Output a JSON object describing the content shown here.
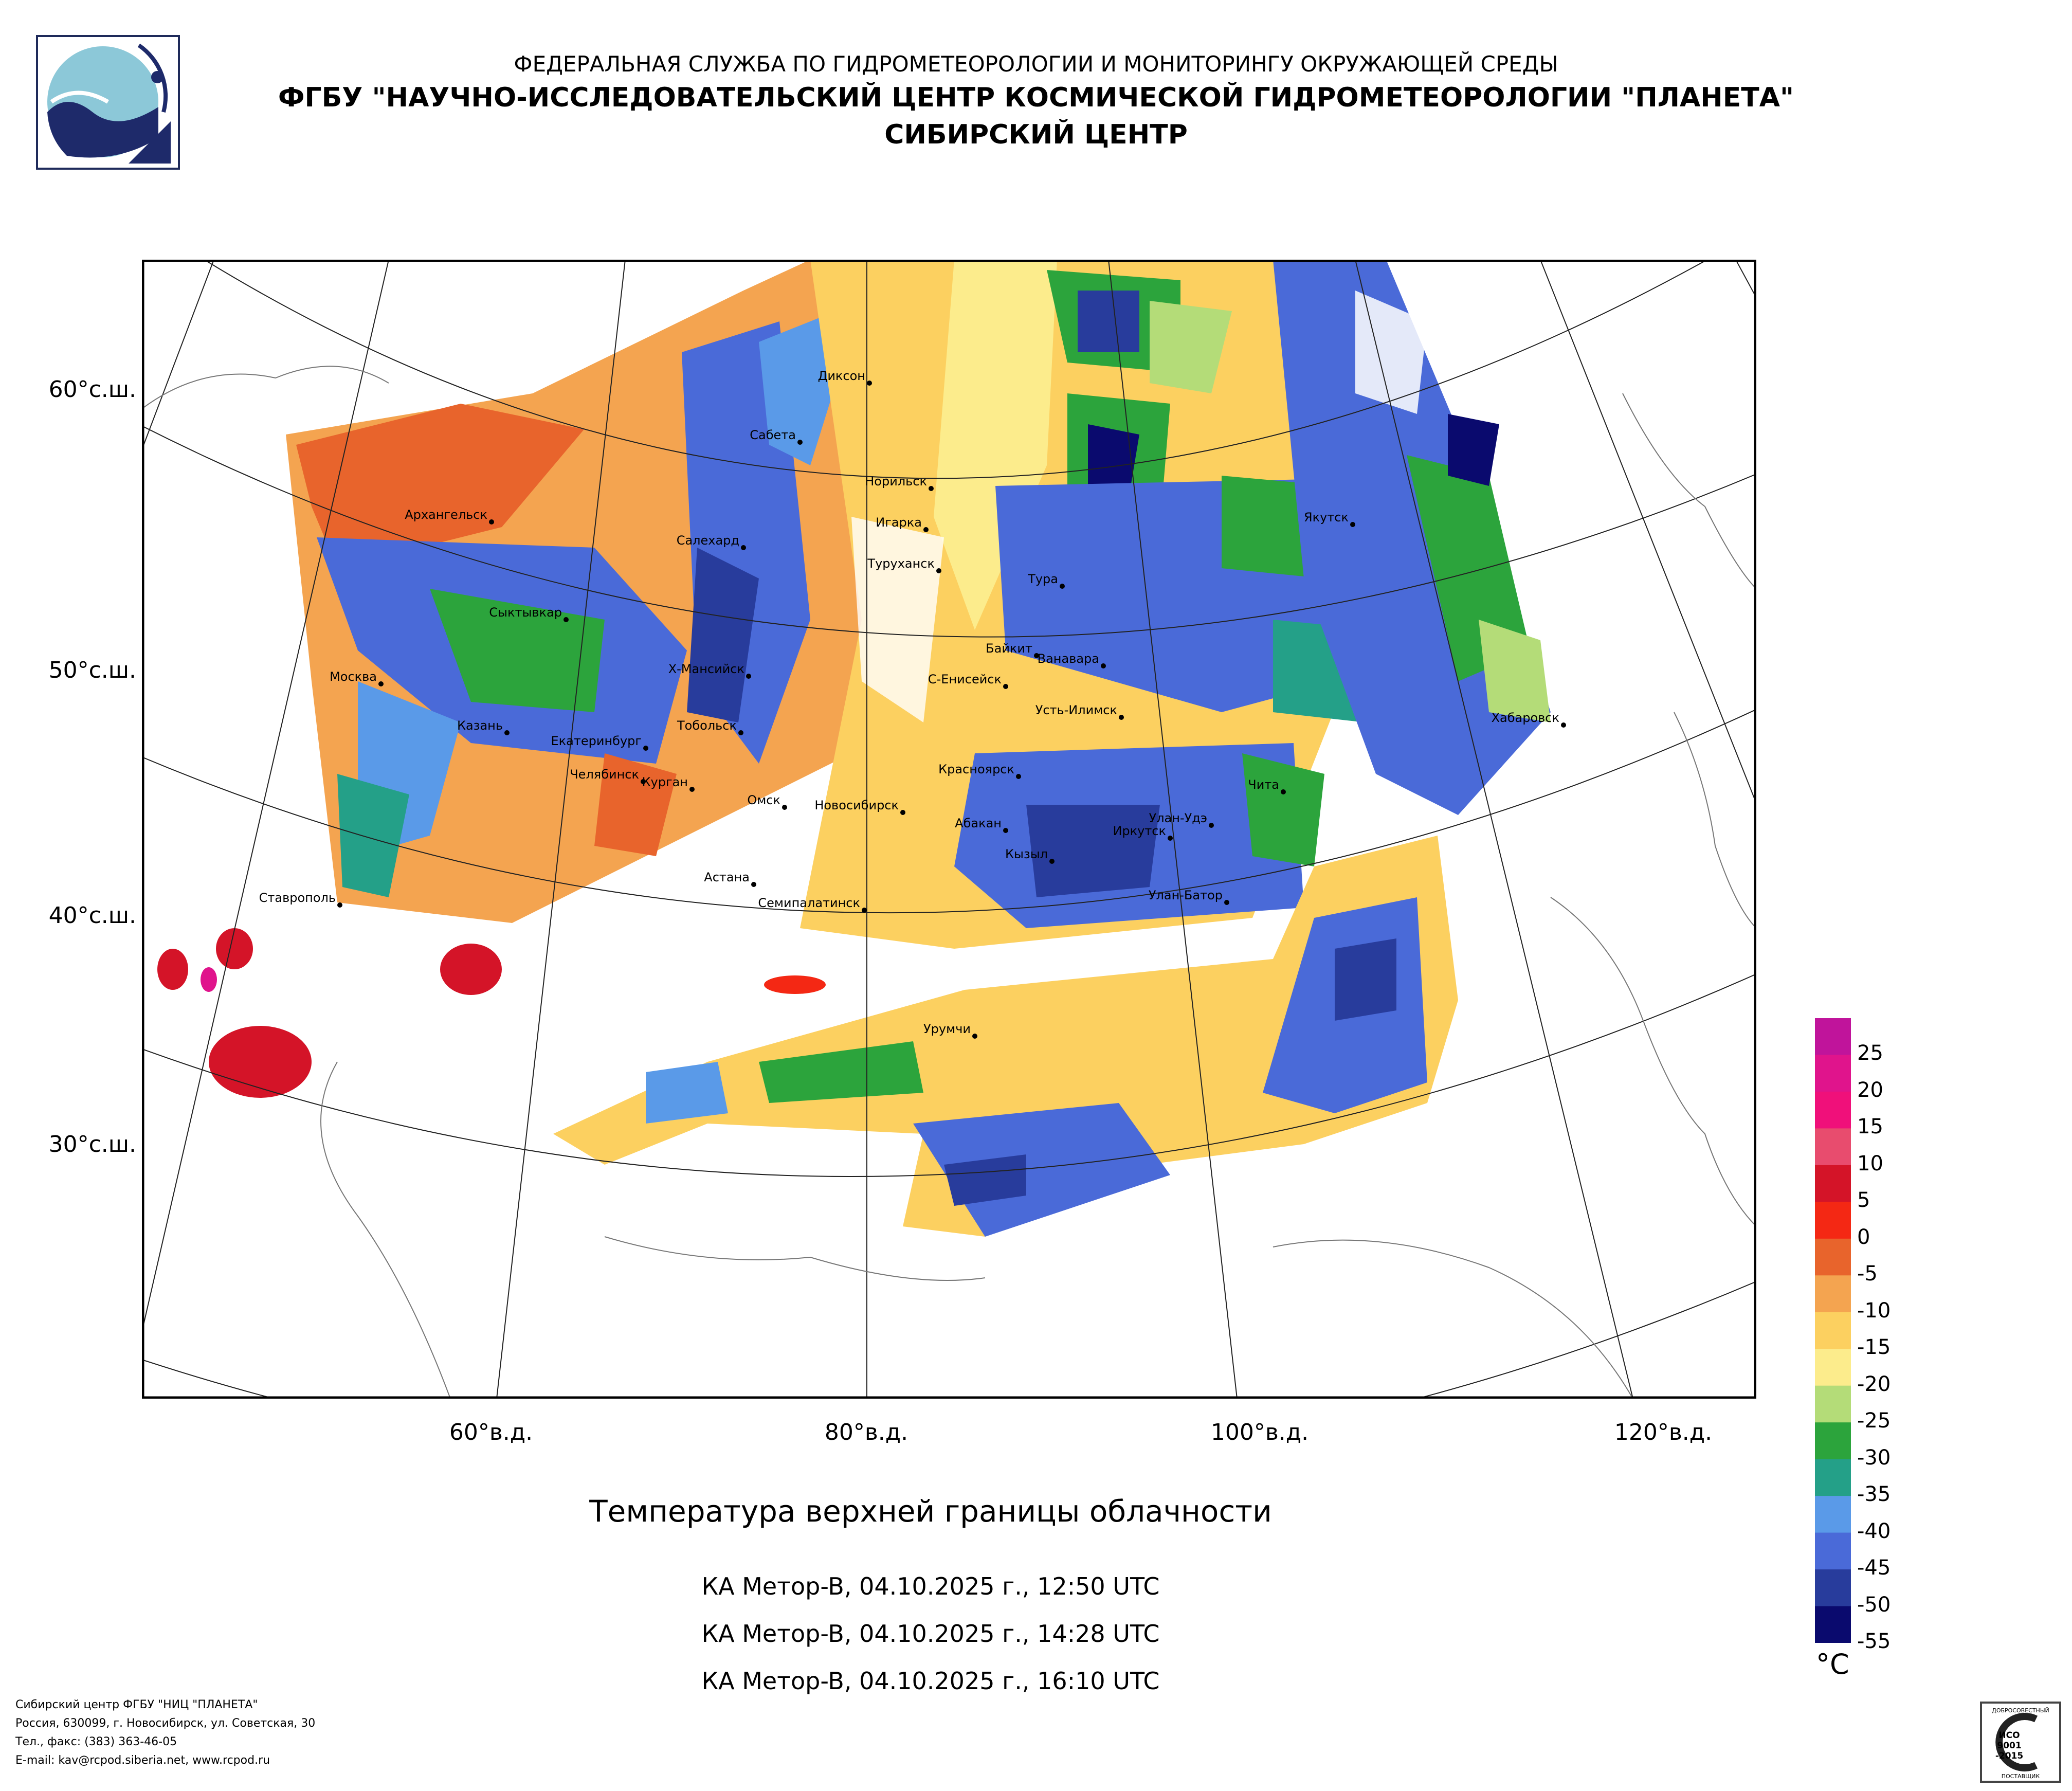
{
  "header": {
    "line1": "ФЕДЕРАЛЬНАЯ СЛУЖБА ПО ГИДРОМЕТЕОРОЛОГИИ И МОНИТОРИНГУ ОКРУЖАЮЩЕЙ СРЕДЫ",
    "line2": "ФГБУ \"НАУЧНО-ИССЛЕДОВАТЕЛЬСКИЙ ЦЕНТР КОСМИЧЕСКОЙ ГИДРОМЕТЕОРОЛОГИИ \"ПЛАНЕТА\"",
    "line3": "СИБИРСКИЙ ЦЕНТР"
  },
  "axes": {
    "latitudes": [
      "60°с.ш.",
      "50°с.ш.",
      "40°с.ш.",
      "30°с.ш."
    ],
    "longitudes": [
      "60°в.д.",
      "80°в.д.",
      "100°в.д.",
      "120°в.д."
    ]
  },
  "cities": [
    "Диксон",
    "Сабета",
    "Норильск",
    "Игарка",
    "Туруханск",
    "Салехард",
    "Архангельск",
    "Якутск",
    "Тура",
    "Сыктывкар",
    "Байкит",
    "Ванавара",
    "Х-Мансийск",
    "С-Енисейск",
    "Москва",
    "Усть-Илимск",
    "Хабаровск",
    "Казань",
    "Тобольск",
    "Екатеринбург",
    "Красноярск",
    "Челябинск",
    "Курган",
    "Чита",
    "Омск",
    "Новосибирск",
    "Улан-Удэ",
    "Абакан",
    "Иркутск",
    "Кызыл",
    "Астана",
    "Ставрополь",
    "Улан-Батор",
    "Семипалатинск",
    "Урумчи"
  ],
  "caption": {
    "title": "Температура верхней границы облачности",
    "passes": [
      "КА Meтop-B, 04.10.2025 г., 12:50 UTC",
      "КА Meтop-B, 04.10.2025 г., 14:28 UTC",
      "КА Meтop-B, 04.10.2025 г., 16:10 UTC"
    ]
  },
  "legend": {
    "unit": "°C",
    "ticks": [
      "25",
      "20",
      "15",
      "10",
      "5",
      "0",
      "-5",
      "-10",
      "-15",
      "-20",
      "-25",
      "-30",
      "-35",
      "-40",
      "-45",
      "-50",
      "-55"
    ],
    "colors": [
      "#c0149b",
      "#e0148c",
      "#f0107a",
      "#e84c6e",
      "#d41428",
      "#f42814",
      "#e8642c",
      "#f4a450",
      "#fcd060",
      "#fcec8c",
      "#b4dc78",
      "#2ca43c",
      "#24a088",
      "#5a9ae8",
      "#4a6ad8",
      "#283c9c",
      "#0a0a6e"
    ]
  },
  "footer": {
    "line1": "Сибирский центр ФГБУ \"НИЦ \"ПЛАНЕТА\"",
    "line2": "Россия, 630099, г. Новосибирск, ул. Советская, 30",
    "line3": "Тел., факс: (383) 363-46-05",
    "line4": "E-mail: kav@rcpod.siberia.net, www.rcpod.ru"
  },
  "badge": {
    "top": "ДОБРОСОВЕСТНЫЙ",
    "iso": "ИСО",
    "num": "9001",
    "year": "-2015",
    "bottom": "ПОСТАВЩИК"
  }
}
